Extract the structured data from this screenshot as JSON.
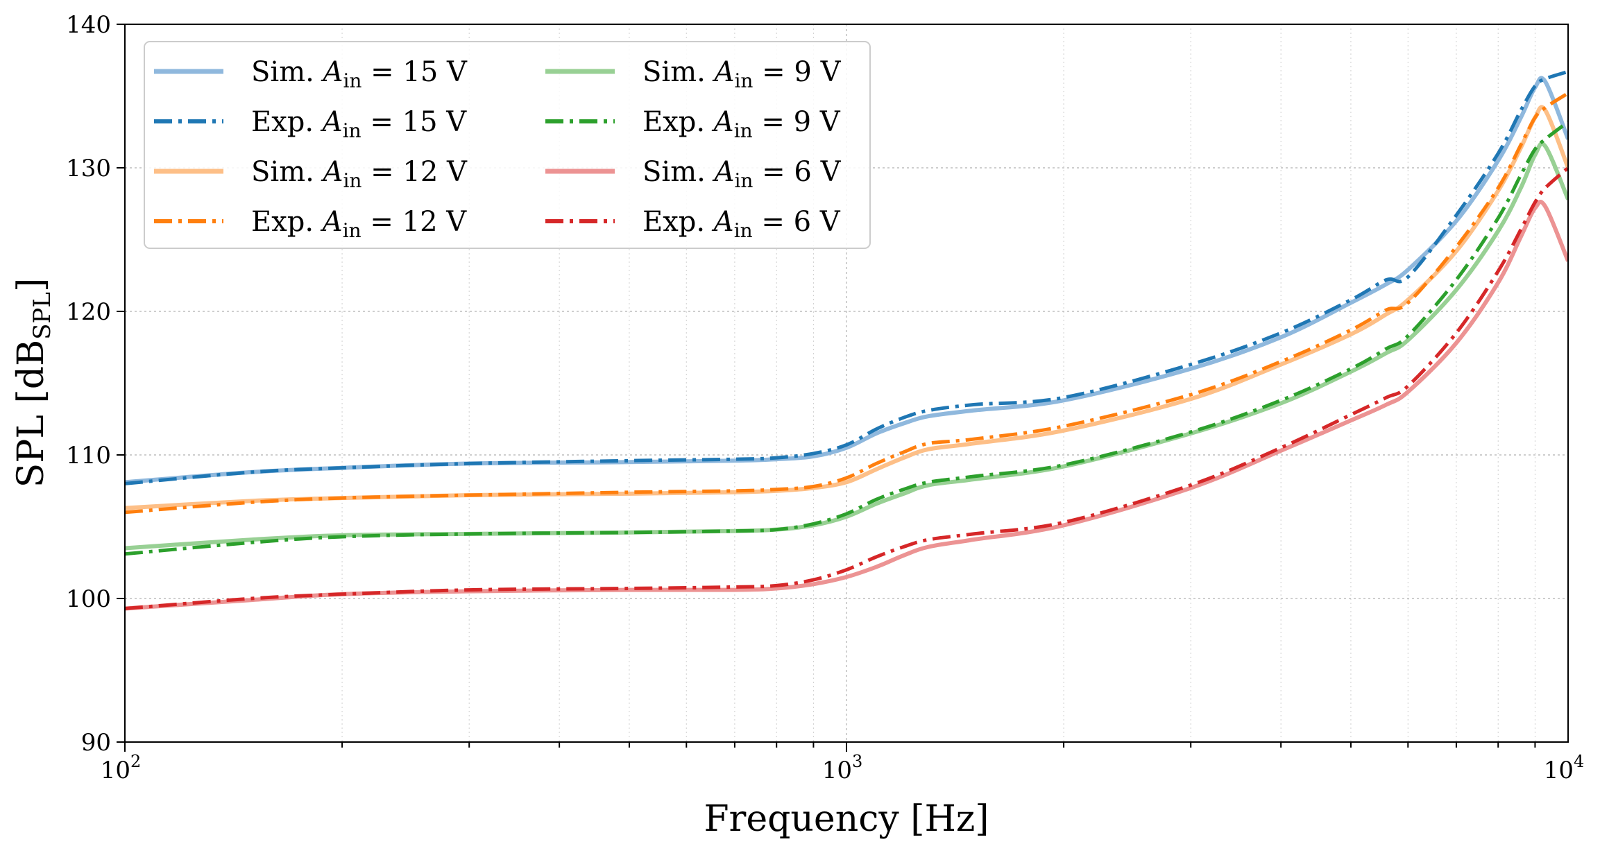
{
  "chart_data": {
    "type": "line",
    "title": "",
    "xlabel": "Frequency [Hz]",
    "ylabel": "SPL [dB",
    "ylabel_sub": "SPL",
    "ylabel_close": "]",
    "xscale": "log",
    "xlim": [
      100,
      10000
    ],
    "ylim": [
      90,
      140
    ],
    "grid": true,
    "legend_position": "top-left",
    "x_ticks": [
      {
        "value": 100,
        "base": "10",
        "exp": "2"
      },
      {
        "value": 1000,
        "base": "10",
        "exp": "3"
      },
      {
        "value": 10000,
        "base": "10",
        "exp": "4"
      }
    ],
    "y_ticks": [
      "90",
      "100",
      "110",
      "120",
      "130",
      "140"
    ],
    "x": [
      100,
      150,
      200,
      300,
      500,
      700,
      800,
      900,
      1000,
      1100,
      1200,
      1300,
      1500,
      2000,
      3000,
      4000,
      5000,
      5600,
      6000,
      7000,
      8000,
      8600,
      9000,
      9300,
      10000
    ],
    "series": [
      {
        "name": "Sim. A_in = 15 V",
        "label_prefix": "Sim.",
        "label_value": "15",
        "color": "#8fb8dd",
        "style": "solid",
        "values": [
          108.1,
          108.8,
          109.1,
          109.4,
          109.5,
          109.6,
          109.7,
          109.9,
          110.5,
          111.5,
          112.2,
          112.7,
          113.1,
          113.8,
          116.0,
          118.2,
          120.6,
          121.9,
          122.9,
          126.3,
          130.5,
          133.5,
          135.6,
          136.0,
          132.0
        ]
      },
      {
        "name": "Exp. A_in = 15 V",
        "label_prefix": "Exp.",
        "label_value": "15",
        "color": "#1f77b4",
        "style": "dashdot",
        "values": [
          108.0,
          108.8,
          109.1,
          109.4,
          109.6,
          109.7,
          109.8,
          110.1,
          110.7,
          111.8,
          112.6,
          113.1,
          113.5,
          114.0,
          116.3,
          118.5,
          120.8,
          122.2,
          122.4,
          126.7,
          131.0,
          134.0,
          135.7,
          136.2,
          136.7
        ]
      },
      {
        "name": "Sim. A_in = 12 V",
        "label_prefix": "Sim.",
        "label_value": "12",
        "color": "#fdbf87",
        "style": "solid",
        "values": [
          106.3,
          106.8,
          107.0,
          107.2,
          107.3,
          107.4,
          107.5,
          107.7,
          108.1,
          109.0,
          109.8,
          110.4,
          110.8,
          111.7,
          113.9,
          116.3,
          118.4,
          119.8,
          120.8,
          124.2,
          128.4,
          131.4,
          133.5,
          134.0,
          130.0
        ]
      },
      {
        "name": "Exp. A_in = 12 V",
        "label_prefix": "Exp.",
        "label_value": "12",
        "color": "#ff7f0e",
        "style": "dashdot",
        "values": [
          106.0,
          106.7,
          107.0,
          107.2,
          107.4,
          107.5,
          107.6,
          107.8,
          108.4,
          109.4,
          110.2,
          110.8,
          111.1,
          112.0,
          114.2,
          116.5,
          118.7,
          120.1,
          120.6,
          124.5,
          128.6,
          131.6,
          133.5,
          134.2,
          135.2
        ]
      },
      {
        "name": "Sim. A_in = 9 V",
        "label_prefix": "Sim.",
        "label_value": "9",
        "color": "#98d094",
        "style": "solid",
        "values": [
          103.5,
          104.1,
          104.4,
          104.5,
          104.6,
          104.7,
          104.8,
          105.1,
          105.7,
          106.6,
          107.3,
          107.9,
          108.3,
          109.2,
          111.5,
          113.6,
          115.8,
          117.1,
          118.0,
          121.5,
          125.6,
          128.6,
          130.9,
          131.5,
          127.8
        ]
      },
      {
        "name": "Exp. A_in = 9 V",
        "label_prefix": "Exp.",
        "label_value": "9",
        "color": "#2ca02c",
        "style": "dashdot",
        "values": [
          103.1,
          103.9,
          104.3,
          104.5,
          104.6,
          104.7,
          104.8,
          105.2,
          105.9,
          106.9,
          107.6,
          108.1,
          108.5,
          109.3,
          111.6,
          113.8,
          116.0,
          117.4,
          118.3,
          122.2,
          126.5,
          129.5,
          131.3,
          132.0,
          133.2
        ]
      },
      {
        "name": "Sim. A_in = 6 V",
        "label_prefix": "Sim.",
        "label_value": "6",
        "color": "#ec9393",
        "style": "solid",
        "values": [
          99.3,
          99.9,
          100.3,
          100.5,
          100.6,
          100.6,
          100.7,
          101.0,
          101.5,
          102.2,
          103.0,
          103.6,
          104.1,
          105.1,
          107.7,
          110.3,
          112.4,
          113.5,
          114.4,
          117.8,
          122.0,
          125.2,
          127.2,
          127.3,
          123.5
        ]
      },
      {
        "name": "Exp. A_in = 6 V",
        "label_prefix": "Exp.",
        "label_value": "6",
        "color": "#d62728",
        "style": "dashdot",
        "values": [
          99.3,
          100.0,
          100.3,
          100.6,
          100.7,
          100.8,
          100.9,
          101.3,
          102.0,
          102.9,
          103.6,
          104.1,
          104.5,
          105.3,
          107.9,
          110.5,
          112.8,
          114.0,
          114.8,
          118.5,
          122.8,
          125.7,
          127.6,
          128.6,
          130.0
        ]
      }
    ],
    "legend_symbol": "A",
    "legend_subscript": "in",
    "legend_equals": "=",
    "legend_unit": "V"
  }
}
